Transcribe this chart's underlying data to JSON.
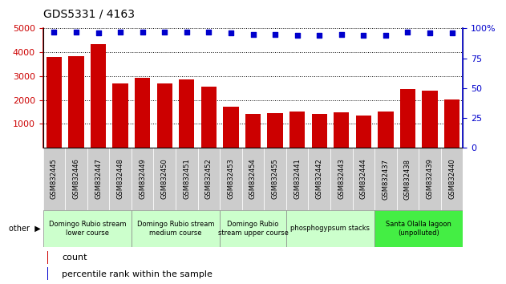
{
  "title": "GDS5331 / 4163",
  "samples": [
    "GSM832445",
    "GSM832446",
    "GSM832447",
    "GSM832448",
    "GSM832449",
    "GSM832450",
    "GSM832451",
    "GSM832452",
    "GSM832453",
    "GSM832454",
    "GSM832455",
    "GSM832441",
    "GSM832442",
    "GSM832443",
    "GSM832444",
    "GSM832437",
    "GSM832438",
    "GSM832439",
    "GSM832440"
  ],
  "counts": [
    3800,
    3820,
    4340,
    2680,
    2940,
    2700,
    2860,
    2570,
    1730,
    1410,
    1460,
    1510,
    1400,
    1470,
    1340,
    1530,
    2460,
    2400,
    2010
  ],
  "percentiles": [
    97,
    97,
    96,
    97,
    97,
    97,
    97,
    97,
    96,
    95,
    95,
    94,
    94,
    95,
    94,
    94,
    97,
    96,
    96
  ],
  "bar_color": "#cc0000",
  "dot_color": "#0000cc",
  "ylim_left": [
    0,
    5000
  ],
  "ylim_right": [
    0,
    100
  ],
  "yticks_left": [
    1000,
    2000,
    3000,
    4000,
    5000
  ],
  "yticks_right": [
    0,
    25,
    50,
    75,
    100
  ],
  "groups": [
    {
      "label": "Domingo Rubio stream\nlower course",
      "start": 0,
      "end": 3,
      "color": "#ccffcc"
    },
    {
      "label": "Domingo Rubio stream\nmedium course",
      "start": 4,
      "end": 7,
      "color": "#ccffcc"
    },
    {
      "label": "Domingo Rubio\nstream upper course",
      "start": 8,
      "end": 10,
      "color": "#ccffcc"
    },
    {
      "label": "phosphogypsum stacks",
      "start": 11,
      "end": 14,
      "color": "#ccffcc"
    },
    {
      "label": "Santa Olalla lagoon\n(unpolluted)",
      "start": 15,
      "end": 18,
      "color": "#44ee44"
    }
  ],
  "other_label": "other",
  "legend_count": "count",
  "legend_percentile": "percentile rank within the sample",
  "bg_color": "#ffffff",
  "ticklabel_bg": "#cccccc",
  "grid_color": "#000000",
  "group_border_color": "#888888"
}
